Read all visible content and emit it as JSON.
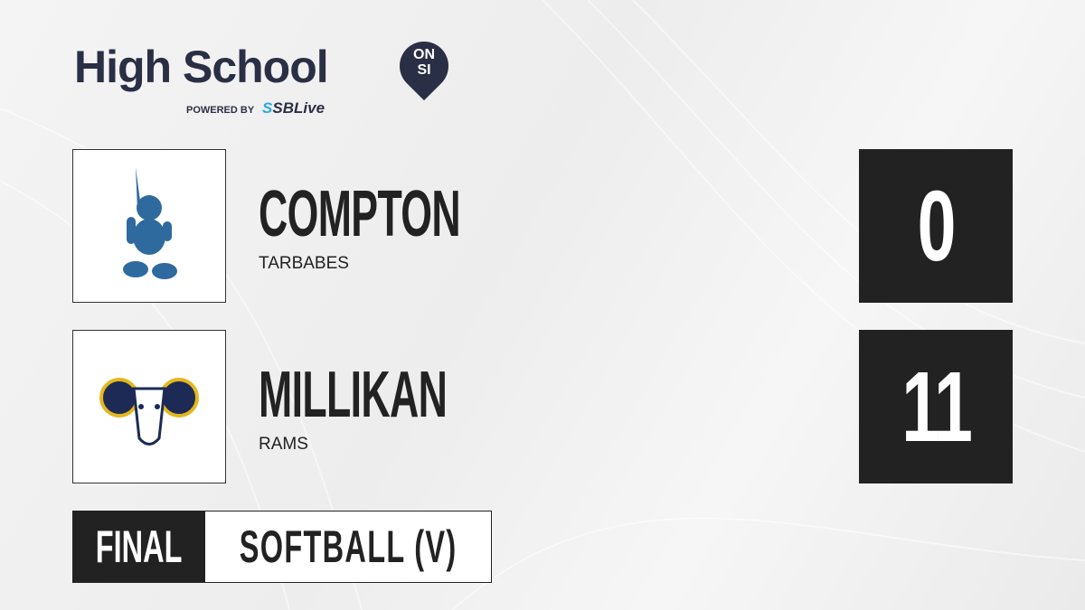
{
  "brand": {
    "title": "High School",
    "badge_line1": "ON",
    "badge_line2": "SI",
    "powered_by": "POWERED BY",
    "partner": "SBLive",
    "accent": "#2b2f45",
    "partner_color": "#27a9e1"
  },
  "teams": [
    {
      "name": "COMPTON",
      "mascot": "TARBABES",
      "score": "0",
      "logo_icon": "tarbabe-mascot-icon",
      "logo_color": "#2f6a9e"
    },
    {
      "name": "MILLIKAN",
      "mascot": "RAMS",
      "score": "11",
      "logo_icon": "ram-head-icon",
      "logo_color": "#1c2a55"
    }
  ],
  "status": {
    "label": "FINAL",
    "sport": "SOFTBALL (V)"
  }
}
